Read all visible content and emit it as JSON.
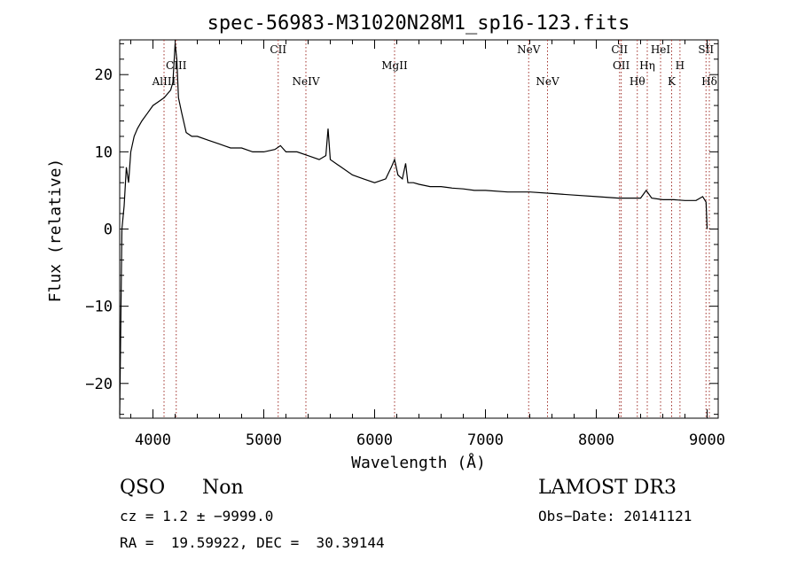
{
  "chart_data": {
    "type": "line",
    "title": "spec-56983-M31020N28M1_sp16-123.fits",
    "xlabel": "Wavelength (Å)",
    "ylabel": "Flux (relative)",
    "xlim": [
      3700,
      9100
    ],
    "ylim": [
      -24.5,
      24.5
    ],
    "xticks": [
      4000,
      5000,
      6000,
      7000,
      8000,
      9000
    ],
    "yticks": [
      -20,
      -10,
      0,
      10,
      20
    ],
    "xtick_labels": [
      "4000",
      "5000",
      "6000",
      "7000",
      "8000",
      "9000"
    ],
    "ytick_labels": [
      "−20",
      "−10",
      "0",
      "10",
      "20"
    ],
    "series": [
      {
        "name": "spectrum",
        "x": [
          3700,
          3720,
          3740,
          3760,
          3780,
          3800,
          3830,
          3860,
          3900,
          3950,
          4000,
          4050,
          4100,
          4130,
          4160,
          4180,
          4200,
          4215,
          4230,
          4260,
          4300,
          4350,
          4400,
          4500,
          4600,
          4700,
          4800,
          4900,
          5000,
          5100,
          5150,
          5200,
          5300,
          5400,
          5500,
          5560,
          5580,
          5600,
          5700,
          5800,
          5900,
          6000,
          6100,
          6150,
          6180,
          6210,
          6250,
          6280,
          6300,
          6350,
          6400,
          6500,
          6600,
          6700,
          6800,
          6900,
          7000,
          7200,
          7400,
          7600,
          7800,
          8000,
          8200,
          8400,
          8450,
          8500,
          8600,
          8700,
          8800,
          8900,
          8960,
          8990,
          9000
        ],
        "y": [
          -24,
          0,
          3,
          8,
          6,
          10,
          12,
          13,
          14,
          15,
          16,
          16.5,
          17,
          17.5,
          18,
          19,
          24,
          22,
          17,
          15,
          12.5,
          12,
          12,
          11.5,
          11,
          10.5,
          10.5,
          10,
          10,
          10.3,
          10.8,
          10,
          10,
          9.5,
          9,
          9.5,
          13,
          9,
          8,
          7,
          6.5,
          6,
          6.5,
          8,
          9,
          7,
          6.5,
          8.5,
          6,
          6,
          5.8,
          5.5,
          5.5,
          5.3,
          5.2,
          5,
          5,
          4.8,
          4.8,
          4.6,
          4.4,
          4.2,
          4,
          4,
          5,
          4,
          3.8,
          3.8,
          3.7,
          3.7,
          4.2,
          3.5,
          0
        ]
      }
    ],
    "lines": [
      {
        "name": "AlIII",
        "wavelength": 4100,
        "row": 3
      },
      {
        "name": "CIII",
        "wavelength": 4210,
        "row": 2
      },
      {
        "name": "CII",
        "wavelength": 5130,
        "row": 1
      },
      {
        "name": "NeIV",
        "wavelength": 5380,
        "row": 3
      },
      {
        "name": "MgII",
        "wavelength": 6180,
        "row": 2
      },
      {
        "name": "NeV",
        "wavelength": 7390,
        "row": 1
      },
      {
        "name": "NeV",
        "wavelength": 7560,
        "row": 3
      },
      {
        "name": "CII",
        "wavelength": 8210,
        "row": 1
      },
      {
        "name": "OII",
        "wavelength": 8225,
        "row": 2
      },
      {
        "name": "Hθ",
        "wavelength": 8370,
        "row": 3
      },
      {
        "name": "Hη",
        "wavelength": 8460,
        "row": 2
      },
      {
        "name": "HeI",
        "wavelength": 8580,
        "row": 1
      },
      {
        "name": "K",
        "wavelength": 8680,
        "row": 3
      },
      {
        "name": "H",
        "wavelength": 8755,
        "row": 2
      },
      {
        "name": "SII",
        "wavelength": 8990,
        "row": 1
      },
      {
        "name": "Hδ",
        "wavelength": 9020,
        "row": 3
      }
    ]
  },
  "footer": {
    "class_label": "QSO",
    "subclass_label": "Non",
    "survey_label": "LAMOST DR3",
    "cz_text": "cz = 1.2 ± −9999.0",
    "obs_date_text": "Obs−Date: 20141121",
    "coords_text": "RA =  19.59922, DEC =  30.39144"
  }
}
